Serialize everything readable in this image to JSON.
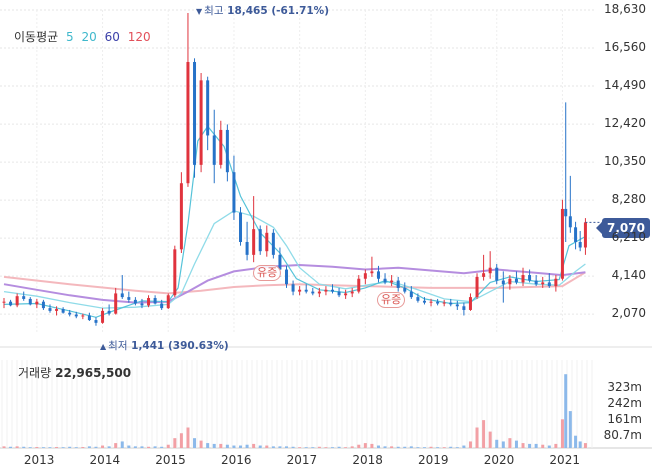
{
  "legend": {
    "title": "이동평균",
    "ma": [
      {
        "label": "5",
        "color": "#3fb8cc"
      },
      {
        "label": "20",
        "color": "#3fb8cc"
      },
      {
        "label": "60",
        "color": "#3a3fa8"
      },
      {
        "label": "120",
        "color": "#e2505a"
      }
    ]
  },
  "volume": {
    "label": "거래량",
    "value": "22,965,500"
  },
  "current_price": "7,070",
  "high_marker": {
    "prefix": "최고",
    "value": "18,465 (-61.71%)"
  },
  "low_marker": {
    "prefix": "최저",
    "value": "1,441 (390.63%)"
  },
  "badges": [
    "유증",
    "유증"
  ],
  "chart_data": {
    "type": "candlestick",
    "price_axis": {
      "ticks": [
        "18,630",
        "16,560",
        "14,490",
        "12,420",
        "10,350",
        "8,280",
        "6,210",
        "4,140",
        "2,070"
      ],
      "range": [
        1100,
        18630
      ]
    },
    "volume_axis": {
      "ticks": [
        "323m",
        "242m",
        "161m",
        "80.7m"
      ]
    },
    "x_axis": {
      "ticks": [
        "2013",
        "2014",
        "2015",
        "2016",
        "2017",
        "2018",
        "2019",
        "2020",
        "2021"
      ],
      "range": [
        2012.5,
        2021.45
      ]
    },
    "high": 18465,
    "low": 1441,
    "last": 7070,
    "ohlc": [
      [
        2012.5,
        2700,
        2950,
        2400,
        2750
      ],
      [
        2012.6,
        2750,
        2850,
        2500,
        2550
      ],
      [
        2012.7,
        2550,
        3200,
        2450,
        3050
      ],
      [
        2012.8,
        3050,
        3300,
        2800,
        2900
      ],
      [
        2012.9,
        2900,
        3000,
        2550,
        2600
      ],
      [
        2013.0,
        2600,
        2900,
        2400,
        2750
      ],
      [
        2013.1,
        2750,
        2850,
        2300,
        2400
      ],
      [
        2013.2,
        2400,
        2600,
        2150,
        2250
      ],
      [
        2013.3,
        2250,
        2500,
        2000,
        2350
      ],
      [
        2013.4,
        2350,
        2450,
        2100,
        2150
      ],
      [
        2013.5,
        2150,
        2300,
        1950,
        2050
      ],
      [
        2013.6,
        2050,
        2200,
        1850,
        1950
      ],
      [
        2013.7,
        1950,
        2100,
        1800,
        2000
      ],
      [
        2013.8,
        2000,
        2150,
        1700,
        1750
      ],
      [
        2013.9,
        1750,
        1900,
        1441,
        1600
      ],
      [
        2014.0,
        1600,
        2400,
        1550,
        2250
      ],
      [
        2014.1,
        2250,
        2600,
        2000,
        2100
      ],
      [
        2014.2,
        2100,
        3500,
        2050,
        3200
      ],
      [
        2014.3,
        3200,
        4200,
        2900,
        3000
      ],
      [
        2014.4,
        3000,
        3300,
        2700,
        2850
      ],
      [
        2014.5,
        2850,
        3000,
        2550,
        2650
      ],
      [
        2014.6,
        2650,
        2900,
        2400,
        2550
      ],
      [
        2014.7,
        2550,
        3100,
        2450,
        2950
      ],
      [
        2014.8,
        2950,
        3100,
        2600,
        2650
      ],
      [
        2014.9,
        2650,
        2850,
        2300,
        2400
      ],
      [
        2015.0,
        2400,
        3200,
        2350,
        3100
      ],
      [
        2015.1,
        3100,
        5800,
        3000,
        5600
      ],
      [
        2015.2,
        5600,
        9800,
        5400,
        9200
      ],
      [
        2015.3,
        9200,
        18465,
        9000,
        15800
      ],
      [
        2015.4,
        15800,
        16000,
        9500,
        10200
      ],
      [
        2015.5,
        10200,
        15200,
        9800,
        14800
      ],
      [
        2015.6,
        14800,
        15000,
        11000,
        11800
      ],
      [
        2015.7,
        11800,
        13200,
        9200,
        10200
      ],
      [
        2015.8,
        10200,
        12600,
        10000,
        12100
      ],
      [
        2015.9,
        12100,
        12400,
        9300,
        9800
      ],
      [
        2016.0,
        9800,
        10700,
        7200,
        7600
      ],
      [
        2016.1,
        7600,
        7900,
        5800,
        6000
      ],
      [
        2016.2,
        6000,
        7100,
        5000,
        5300
      ],
      [
        2016.3,
        5300,
        8500,
        4900,
        6700
      ],
      [
        2016.4,
        6700,
        6900,
        5300,
        5500
      ],
      [
        2016.5,
        5500,
        6900,
        5200,
        6500
      ],
      [
        2016.6,
        6500,
        6700,
        5100,
        5300
      ],
      [
        2016.7,
        5300,
        5700,
        4100,
        4500
      ],
      [
        2016.8,
        4500,
        4700,
        3500,
        3700
      ],
      [
        2016.9,
        3700,
        3900,
        3100,
        3300
      ],
      [
        2017.0,
        3300,
        3600,
        3100,
        3400
      ],
      [
        2017.1,
        3400,
        3700,
        3200,
        3300
      ],
      [
        2017.2,
        3300,
        3500,
        3100,
        3200
      ],
      [
        2017.3,
        3200,
        3500,
        3000,
        3300
      ],
      [
        2017.4,
        3300,
        3600,
        3100,
        3400
      ],
      [
        2017.5,
        3400,
        3700,
        3200,
        3300
      ],
      [
        2017.6,
        3300,
        3500,
        3000,
        3100
      ],
      [
        2017.7,
        3100,
        3400,
        2900,
        3200
      ],
      [
        2017.8,
        3200,
        3500,
        3000,
        3300
      ],
      [
        2017.9,
        3300,
        4200,
        3200,
        4000
      ],
      [
        2018.0,
        4000,
        4500,
        3700,
        4300
      ],
      [
        2018.1,
        4300,
        5200,
        4100,
        4400
      ],
      [
        2018.2,
        4400,
        4700,
        3800,
        4000
      ],
      [
        2018.3,
        4000,
        4300,
        3700,
        3800
      ],
      [
        2018.4,
        3800,
        4200,
        3600,
        3900
      ],
      [
        2018.5,
        3900,
        4100,
        3300,
        3500
      ],
      [
        2018.6,
        3500,
        3800,
        3200,
        3300
      ],
      [
        2018.7,
        3300,
        3600,
        2900,
        3000
      ],
      [
        2018.8,
        3000,
        3200,
        2700,
        2800
      ],
      [
        2018.9,
        2800,
        3000,
        2600,
        2700
      ],
      [
        2019.0,
        2700,
        2900,
        2500,
        2750
      ],
      [
        2019.1,
        2750,
        2900,
        2550,
        2650
      ],
      [
        2019.2,
        2650,
        2850,
        2500,
        2700
      ],
      [
        2019.3,
        2700,
        2900,
        2500,
        2600
      ],
      [
        2019.4,
        2600,
        2800,
        2300,
        2500
      ],
      [
        2019.5,
        2500,
        2700,
        2000,
        2300
      ],
      [
        2019.6,
        2300,
        3200,
        2250,
        3000
      ],
      [
        2019.7,
        3000,
        4300,
        2900,
        4100
      ],
      [
        2019.8,
        4100,
        5300,
        3900,
        4300
      ],
      [
        2019.9,
        4300,
        5500,
        4000,
        4600
      ],
      [
        2020.0,
        4600,
        4800,
        3700,
        3900
      ],
      [
        2020.1,
        3900,
        4400,
        2700,
        3700
      ],
      [
        2020.2,
        3700,
        4200,
        3400,
        4000
      ],
      [
        2020.3,
        4000,
        4400,
        3700,
        3800
      ],
      [
        2020.4,
        3800,
        4600,
        3600,
        4200
      ],
      [
        2020.5,
        4200,
        4500,
        3800,
        3900
      ],
      [
        2020.6,
        3900,
        4200,
        3600,
        3700
      ],
      [
        2020.7,
        3700,
        4100,
        3500,
        3800
      ],
      [
        2020.8,
        3800,
        4300,
        3500,
        3600
      ],
      [
        2020.9,
        3600,
        4200,
        3300,
        4000
      ],
      [
        2021.0,
        4000,
        8300,
        3900,
        7800
      ],
      [
        2021.05,
        7800,
        13600,
        6000,
        7400
      ],
      [
        2021.12,
        7400,
        9600,
        6500,
        6800
      ],
      [
        2021.2,
        6800,
        7100,
        5600,
        6000
      ],
      [
        2021.27,
        6000,
        6600,
        5500,
        5700
      ],
      [
        2021.35,
        5700,
        7300,
        5300,
        7070
      ]
    ],
    "volume_ratio": [
      0.02,
      0.015,
      0.02,
      0.015,
      0.01,
      0.012,
      0.01,
      0.01,
      0.012,
      0.01,
      0.015,
      0.01,
      0.012,
      0.02,
      0.015,
      0.03,
      0.02,
      0.06,
      0.08,
      0.03,
      0.02,
      0.02,
      0.015,
      0.02,
      0.015,
      0.04,
      0.12,
      0.18,
      0.25,
      0.12,
      0.09,
      0.06,
      0.05,
      0.05,
      0.04,
      0.03,
      0.03,
      0.04,
      0.05,
      0.03,
      0.03,
      0.02,
      0.02,
      0.02,
      0.015,
      0.01,
      0.01,
      0.01,
      0.015,
      0.01,
      0.01,
      0.015,
      0.01,
      0.02,
      0.04,
      0.06,
      0.05,
      0.03,
      0.02,
      0.02,
      0.015,
      0.015,
      0.02,
      0.01,
      0.01,
      0.015,
      0.01,
      0.01,
      0.015,
      0.01,
      0.03,
      0.08,
      0.25,
      0.34,
      0.2,
      0.1,
      0.08,
      0.12,
      0.09,
      0.06,
      0.05,
      0.05,
      0.04,
      0.03,
      0.05,
      0.35,
      0.9,
      0.45,
      0.15,
      0.08,
      0.06
    ],
    "ma_series": {
      "ma20": [
        [
          2012.5,
          2600
        ],
        [
          2013.0,
          2650
        ],
        [
          2013.5,
          2250
        ],
        [
          2013.9,
          1900
        ],
        [
          2014.2,
          2300
        ],
        [
          2014.6,
          2800
        ],
        [
          2015.0,
          2750
        ],
        [
          2015.15,
          3500
        ],
        [
          2015.3,
          7000
        ],
        [
          2015.45,
          11500
        ],
        [
          2015.6,
          12300
        ],
        [
          2015.85,
          11200
        ],
        [
          2016.1,
          8500
        ],
        [
          2016.4,
          6500
        ],
        [
          2016.7,
          5400
        ],
        [
          2016.95,
          4000
        ],
        [
          2017.3,
          3400
        ],
        [
          2017.7,
          3250
        ],
        [
          2018.0,
          3500
        ],
        [
          2018.3,
          3900
        ],
        [
          2018.6,
          3500
        ],
        [
          2018.9,
          2900
        ],
        [
          2019.3,
          2650
        ],
        [
          2019.6,
          2700
        ],
        [
          2019.9,
          3800
        ],
        [
          2020.2,
          4100
        ],
        [
          2020.6,
          3850
        ],
        [
          2020.95,
          3950
        ],
        [
          2021.1,
          5800
        ],
        [
          2021.35,
          6300
        ]
      ],
      "ma60": [
        [
          2012.5,
          3300
        ],
        [
          2013.0,
          3050
        ],
        [
          2013.5,
          2700
        ],
        [
          2014.0,
          2400
        ],
        [
          2014.5,
          2450
        ],
        [
          2015.0,
          2600
        ],
        [
          2015.2,
          3200
        ],
        [
          2015.4,
          4800
        ],
        [
          2015.7,
          7000
        ],
        [
          2016.0,
          7700
        ],
        [
          2016.3,
          7400
        ],
        [
          2016.6,
          6800
        ],
        [
          2016.8,
          5800
        ],
        [
          2017.0,
          4600
        ],
        [
          2017.3,
          3700
        ],
        [
          2017.7,
          3450
        ],
        [
          2018.1,
          3700
        ],
        [
          2018.4,
          3850
        ],
        [
          2018.8,
          3400
        ],
        [
          2019.2,
          2900
        ],
        [
          2019.6,
          2750
        ],
        [
          2019.9,
          3300
        ],
        [
          2020.2,
          3850
        ],
        [
          2020.6,
          3700
        ],
        [
          2020.95,
          3650
        ],
        [
          2021.2,
          4400
        ],
        [
          2021.35,
          4800
        ]
      ],
      "ma120": [
        [
          2012.5,
          3700
        ],
        [
          2013.0,
          3400
        ],
        [
          2013.5,
          3100
        ],
        [
          2014.0,
          2850
        ],
        [
          2014.5,
          2700
        ],
        [
          2015.0,
          2750
        ],
        [
          2015.3,
          3300
        ],
        [
          2015.6,
          3900
        ],
        [
          2016.0,
          4400
        ],
        [
          2016.5,
          4650
        ],
        [
          2017.0,
          4750
        ],
        [
          2017.5,
          4650
        ],
        [
          2018.0,
          4500
        ],
        [
          2018.5,
          4600
        ],
        [
          2019.0,
          4450
        ],
        [
          2019.5,
          4300
        ],
        [
          2020.0,
          4500
        ],
        [
          2020.5,
          4350
        ],
        [
          2021.0,
          4200
        ],
        [
          2021.35,
          4350
        ]
      ],
      "pink": [
        [
          2012.5,
          4100
        ],
        [
          2013.5,
          3700
        ],
        [
          2014.5,
          3350
        ],
        [
          2015.0,
          3200
        ],
        [
          2015.5,
          3350
        ],
        [
          2016.0,
          3550
        ],
        [
          2016.5,
          3650
        ],
        [
          2017.0,
          3700
        ],
        [
          2017.5,
          3650
        ],
        [
          2018.0,
          3600
        ],
        [
          2018.5,
          3550
        ],
        [
          2019.0,
          3500
        ],
        [
          2019.5,
          3500
        ],
        [
          2020.0,
          3500
        ],
        [
          2020.5,
          3550
        ],
        [
          2021.0,
          3600
        ],
        [
          2021.35,
          4350
        ]
      ]
    }
  }
}
